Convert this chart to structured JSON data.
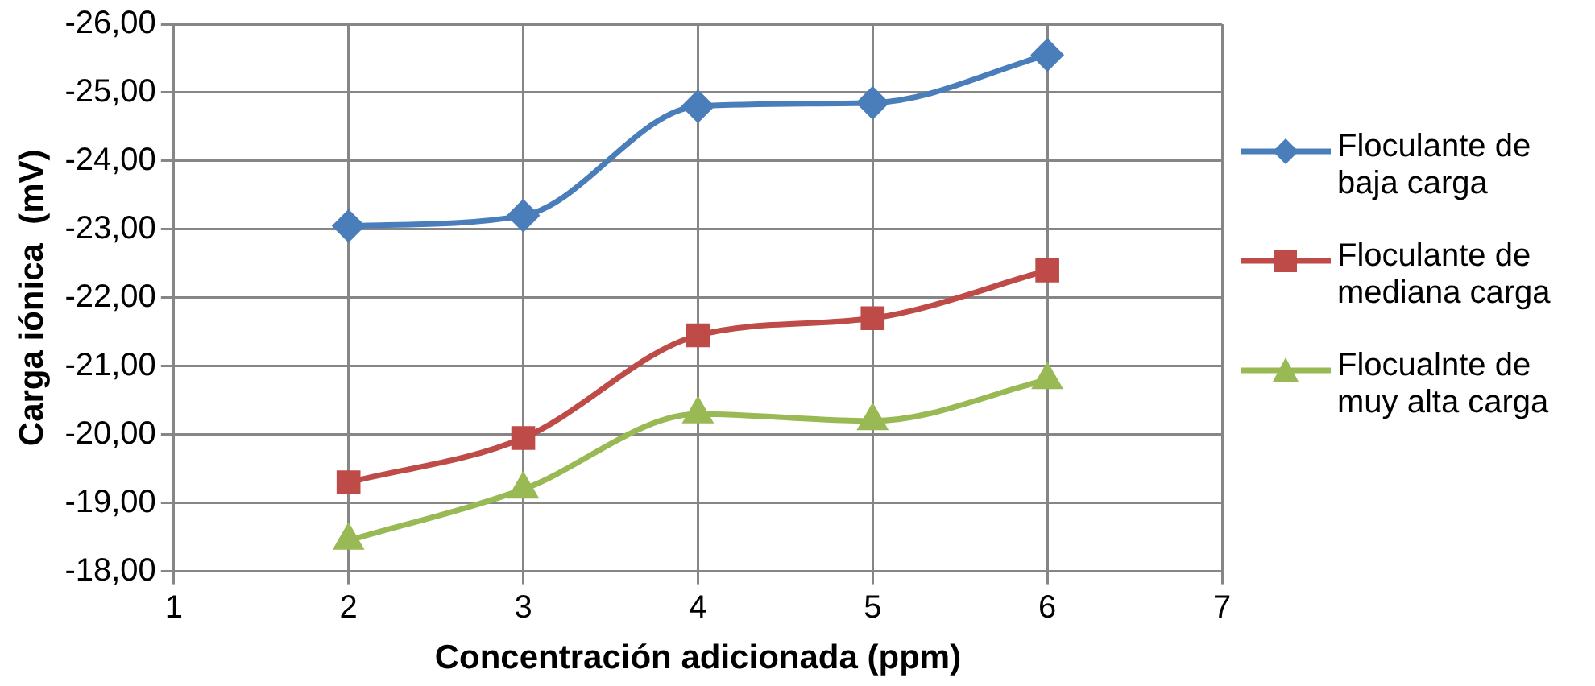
{
  "chart_data": {
    "type": "line",
    "xlabel": "Concentración adicionada (ppm)",
    "ylabel": "Carga iónica  (mV)",
    "x": [
      2,
      3,
      4,
      5,
      6
    ],
    "series": [
      {
        "name": "Floculante de baja carga",
        "color": "#4a7ebb",
        "marker": "diamond",
        "values": [
          -23.05,
          -23.2,
          -24.8,
          -24.85,
          -25.55
        ]
      },
      {
        "name": "Floculante de mediana carga",
        "color": "#be4b48",
        "marker": "square",
        "values": [
          -19.3,
          -19.95,
          -21.45,
          -21.7,
          -22.4
        ]
      },
      {
        "name": "Flocualnte de muy alta carga",
        "color": "#98b954",
        "marker": "triangle",
        "values": [
          -18.45,
          -19.2,
          -20.3,
          -20.2,
          -20.8
        ]
      }
    ],
    "xlim": [
      1,
      7
    ],
    "xticks": [
      1,
      2,
      3,
      4,
      5,
      6,
      7
    ],
    "ylim": [
      -18,
      -26
    ],
    "yticks": [
      {
        "value": -18,
        "label": "-18,00"
      },
      {
        "value": -19,
        "label": "-19,00"
      },
      {
        "value": -20,
        "label": "-20,00"
      },
      {
        "value": -21,
        "label": "-21,00"
      },
      {
        "value": -22,
        "label": "-22,00"
      },
      {
        "value": -23,
        "label": "-23,00"
      },
      {
        "value": -24,
        "label": "-24,00"
      },
      {
        "value": -25,
        "label": "-25,00"
      },
      {
        "value": -26,
        "label": "-26,00"
      }
    ],
    "grid": true,
    "legend": "right",
    "line_style": "solid"
  }
}
